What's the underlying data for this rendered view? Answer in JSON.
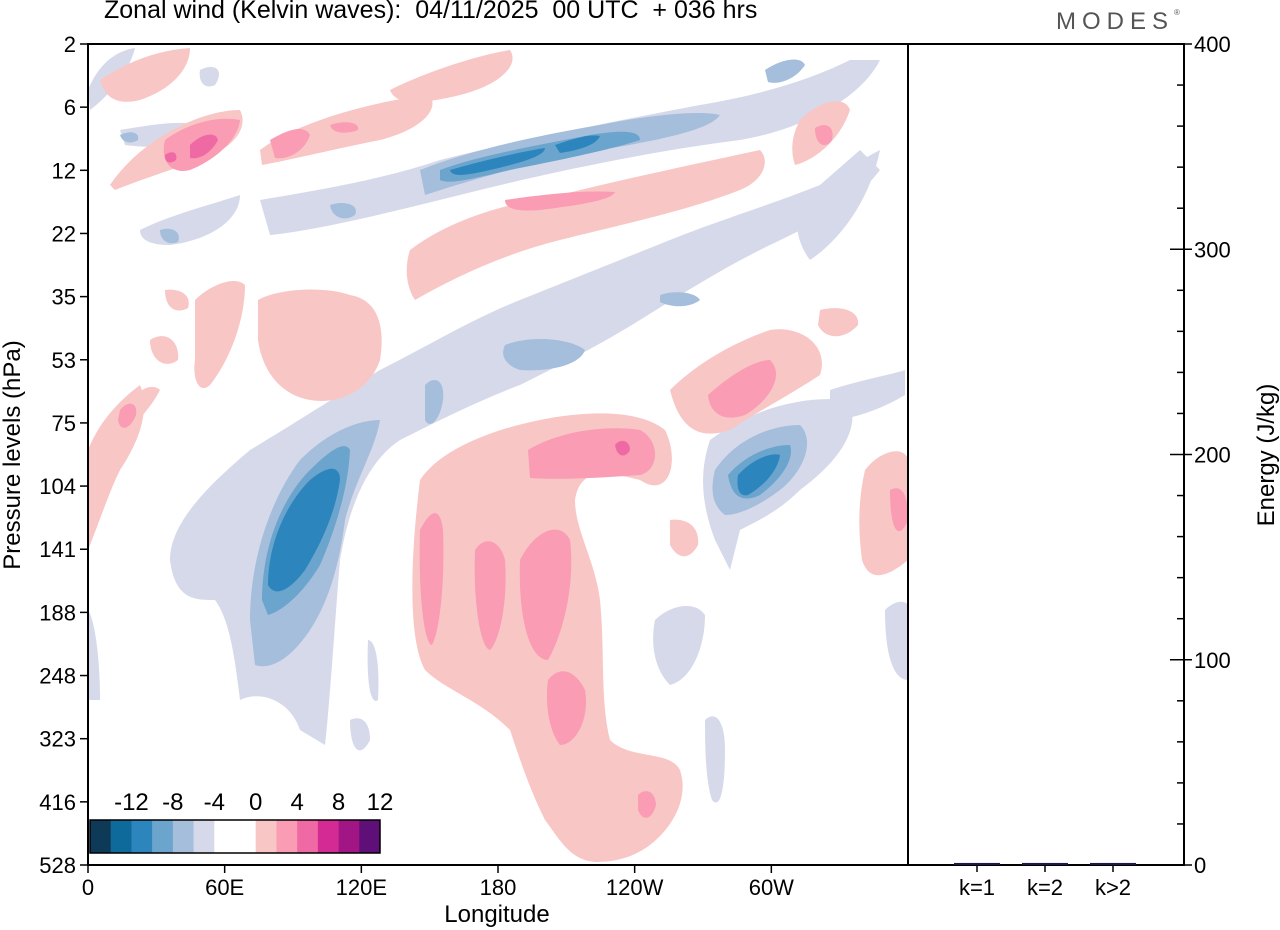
{
  "chart_data": [
    {
      "type": "heatmap",
      "title": "Zonal wind (Kelvin waves):  04/11/2025  00 UTC  + 036 hrs",
      "xlabel": "Longitude",
      "ylabel": "Pressure levels (hPa)",
      "x_ticks": [
        {
          "label": "0",
          "lon": 0
        },
        {
          "label": "60E",
          "lon": 60
        },
        {
          "label": "120E",
          "lon": 120
        },
        {
          "label": "180",
          "lon": 180
        },
        {
          "label": "120W",
          "lon": 240
        },
        {
          "label": "60W",
          "lon": 300
        }
      ],
      "xlim": [
        0,
        360
      ],
      "y_levels": [
        "2",
        "6",
        "12",
        "22",
        "35",
        "53",
        "75",
        "104",
        "141",
        "188",
        "248",
        "323",
        "416",
        "528"
      ],
      "colorbar": {
        "labels": [
          "-12",
          "-8",
          "-4",
          "0",
          "4",
          "8",
          "12"
        ],
        "colors": [
          "#0e3a57",
          "#0f6a9c",
          "#2c85bd",
          "#6ba4cc",
          "#a4bedc",
          "#d6d9e9",
          "#ffffff",
          "#ffffff",
          "#f9c6c6",
          "#f99cb4",
          "#ef6aa4",
          "#d42a93",
          "#a21585",
          "#5f0f78"
        ]
      },
      "features": [
        {
          "sign": "negative",
          "lon_center": 90,
          "level": "141",
          "min_value": -10
        },
        {
          "sign": "negative",
          "lon_center": 290,
          "level": "104",
          "min_value": -8
        },
        {
          "sign": "negative",
          "lon_center": 180,
          "level": "12",
          "min_value": -8
        },
        {
          "sign": "positive",
          "lon_center": 240,
          "level": "90",
          "min_value": 8
        },
        {
          "sign": "positive",
          "lon_center": 185,
          "level": "160",
          "min_value": 6
        },
        {
          "sign": "positive",
          "lon_center": 270,
          "level": "60",
          "min_value": 6
        },
        {
          "sign": "positive",
          "lon_center": 40,
          "level": "10",
          "min_value": 8
        }
      ]
    },
    {
      "type": "bar",
      "ylabel": "Energy (J/kg)",
      "ylim": [
        0,
        400
      ],
      "y_ticks": [
        0,
        100,
        200,
        300,
        400
      ],
      "categories": [
        "k=1",
        "k=2",
        "k>2"
      ],
      "values": [
        1,
        1,
        1
      ],
      "bar_color": "#1a1a4d"
    }
  ],
  "header": {
    "title": "Zonal wind (Kelvin waves):  04/11/2025  00 UTC  + 036 hrs",
    "brand": "MODES"
  }
}
